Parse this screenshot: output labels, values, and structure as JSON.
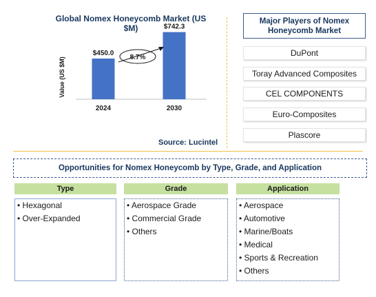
{
  "chart_data": {
    "type": "bar",
    "title": "Global Nomex Honeycomb Market (US $M)",
    "ylabel": "Value (US $M)",
    "categories": [
      "2024",
      "2030"
    ],
    "values": [
      450.0,
      742.3
    ],
    "value_labels": [
      "$450.0",
      "$742.3"
    ],
    "cagr_label": "8.7%",
    "bar_color": "#4472c4",
    "ylim": [
      0,
      800
    ]
  },
  "source": "Source: Lucintel",
  "players": {
    "title": "Major Players of Nomex Honeycomb Market",
    "items": [
      "DuPont",
      "Toray Advanced Composites",
      "CEL COMPONENTS",
      "Euro-Composites",
      "Plascore"
    ]
  },
  "opportunities": {
    "title": "Opportunities for Nomex Honeycomb by Type, Grade, and Application",
    "header_color": "#c6e0a0",
    "categories": [
      {
        "title": "Type",
        "items": [
          "• Hexagonal",
          "• Over-Expanded"
        ]
      },
      {
        "title": "Grade",
        "items": [
          "• Aerospace Grade",
          "• Commercial Grade",
          "• Others"
        ]
      },
      {
        "title": "Application",
        "items": [
          "• Aerospace",
          "• Automotive",
          "• Marine/Boats",
          "• Medical",
          "• Sports & Recreation",
          "• Others"
        ]
      }
    ]
  }
}
